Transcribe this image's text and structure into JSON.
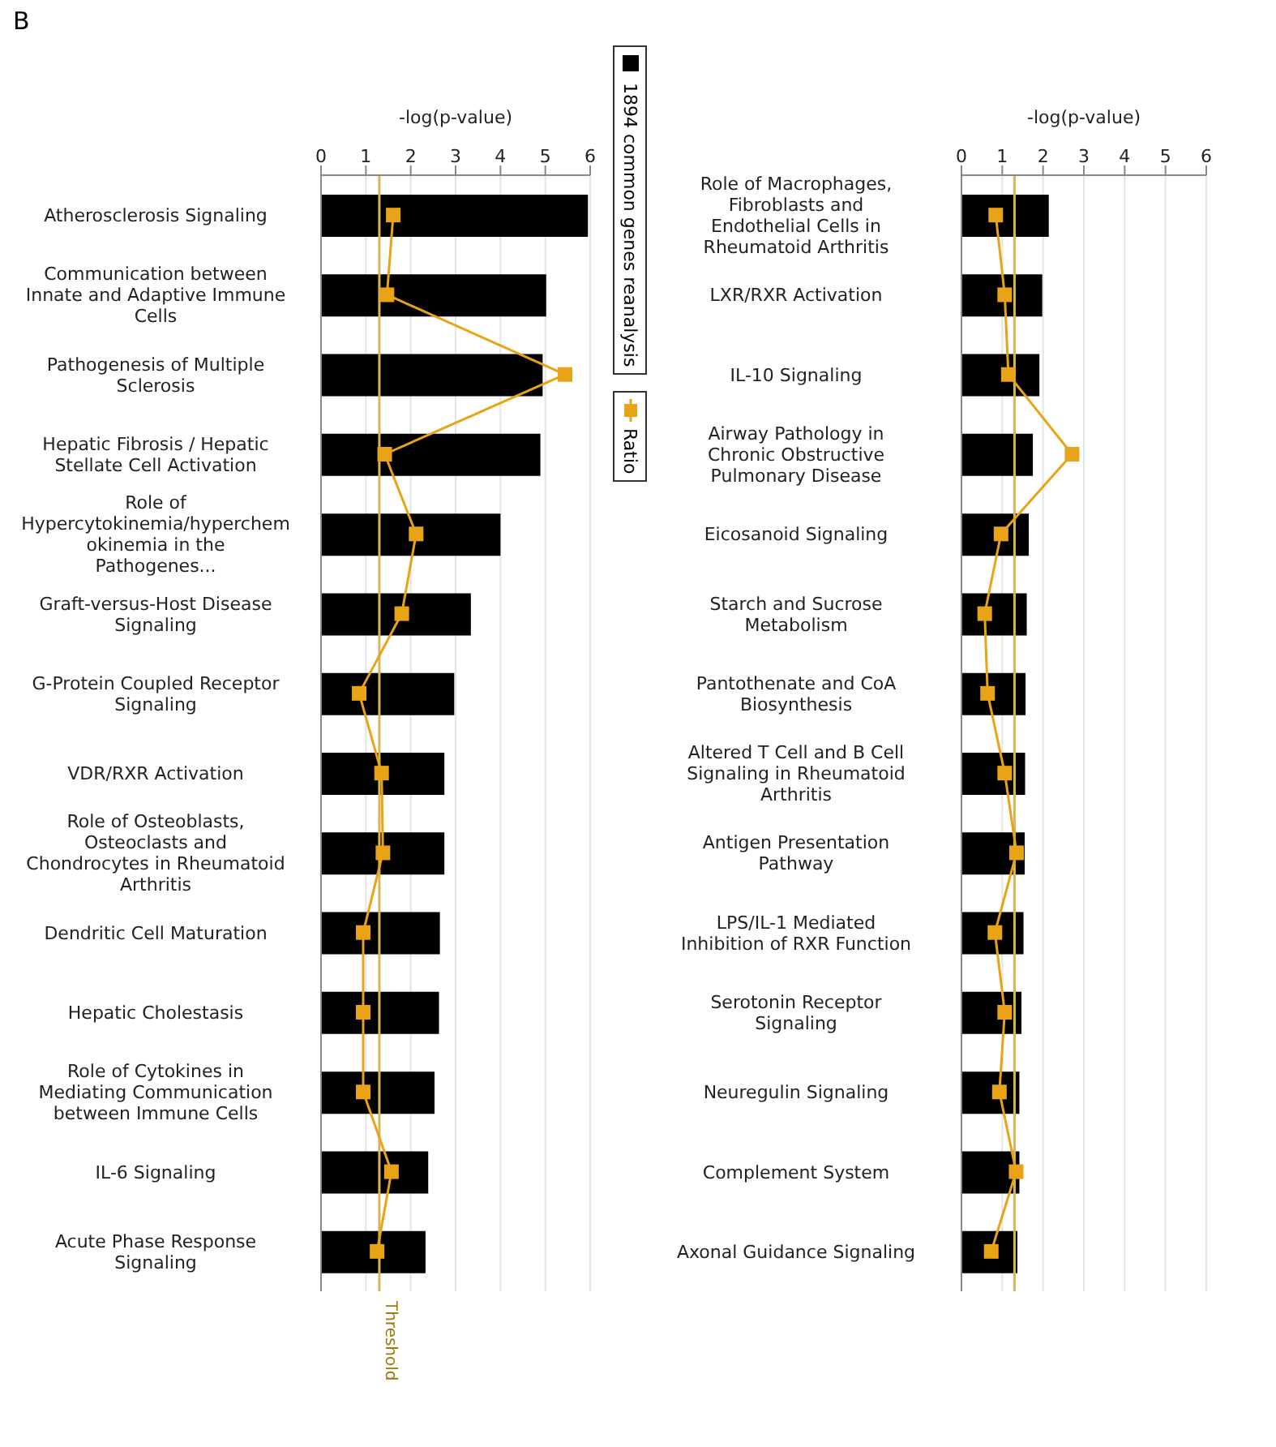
{
  "chart_data": [
    {
      "type": "bar",
      "orientation": "horizontal",
      "xlabel": "-log(p-value)",
      "annotations": [
        "B"
      ],
      "categories": [
        "Atherosclerosis Signaling",
        "Communication between Innate and Adaptive Immune Cells",
        "Pathogenesis of Multiple Sclerosis",
        "Hepatic Fibrosis / Hepatic Stellate Cell Activation",
        "Role of Hypercytokinemia/hyperchemokinemia in the Pathogenes...",
        "Graft-versus-Host Disease Signaling",
        "G-Protein Coupled Receptor Signaling",
        "VDR/RXR Activation",
        "Role of Osteoblasts, Osteoclasts and Chondrocytes in Rheumatoid Arthritis",
        "Dendritic Cell Maturation",
        "Hepatic Cholestasis",
        "Role of Cytokines in Mediating Communication between Immune Cells",
        "IL-6 Signaling",
        "Acute Phase Response Signaling"
      ],
      "series": [
        {
          "name": "1894 common genes reanalysis",
          "color": "#000000",
          "values": [
            5.95,
            5.02,
            4.94,
            4.89,
            4.0,
            3.34,
            2.97,
            2.75,
            2.75,
            2.65,
            2.63,
            2.53,
            2.39,
            2.33
          ]
        },
        {
          "name": "Ratio",
          "type": "line",
          "color": "#e8a317",
          "values": [
            1.61,
            1.47,
            5.44,
            1.42,
            2.12,
            1.8,
            0.85,
            1.35,
            1.38,
            0.94,
            0.94,
            0.94,
            1.57,
            1.25
          ]
        }
      ],
      "xlim": [
        0,
        6
      ],
      "xticks": [
        0,
        1,
        2,
        3,
        4,
        5,
        6
      ],
      "grid": "x",
      "legend": "right",
      "marker": "square",
      "ref_lines": [
        {
          "axis": "x",
          "value": 1.3,
          "label": "Threshold",
          "color": "#d8b45a"
        }
      ]
    },
    {
      "type": "bar",
      "orientation": "horizontal",
      "xlabel": "-log(p-value)",
      "categories": [
        "Role of Macrophages, Fibroblasts and Endothelial Cells in Rheumatoid Arthritis",
        "LXR/RXR Activation",
        "IL-10 Signaling",
        "Airway Pathology in Chronic Obstructive Pulmonary Disease",
        "Eicosanoid Signaling",
        "Starch and Sucrose Metabolism",
        "Pantothenate and CoA Biosynthesis",
        "Altered T Cell and B Cell Signaling in Rheumatoid Arthritis",
        "Antigen Presentation Pathway",
        "LPS/IL-1 Mediated Inhibition of RXR Function",
        "Serotonin Receptor Signaling",
        "Neuregulin Signaling",
        "Complement System",
        "Axonal Guidance Signaling"
      ],
      "series": [
        {
          "color": "#000000",
          "values": [
            2.14,
            1.98,
            1.91,
            1.75,
            1.65,
            1.6,
            1.57,
            1.56,
            1.55,
            1.52,
            1.47,
            1.42,
            1.42,
            1.37
          ]
        },
        {
          "type": "line",
          "color": "#e8a317",
          "values": [
            0.84,
            1.06,
            1.15,
            2.71,
            0.97,
            0.57,
            0.64,
            1.06,
            1.35,
            0.82,
            1.06,
            0.93,
            1.34,
            0.73
          ]
        }
      ],
      "xlim": [
        0,
        6
      ],
      "xticks": [
        0,
        1,
        2,
        3,
        4,
        5,
        6
      ],
      "grid": "x",
      "marker": "square",
      "ref_lines": [
        {
          "axis": "x",
          "value": 1.3,
          "color": "#d8b45a"
        }
      ]
    }
  ]
}
